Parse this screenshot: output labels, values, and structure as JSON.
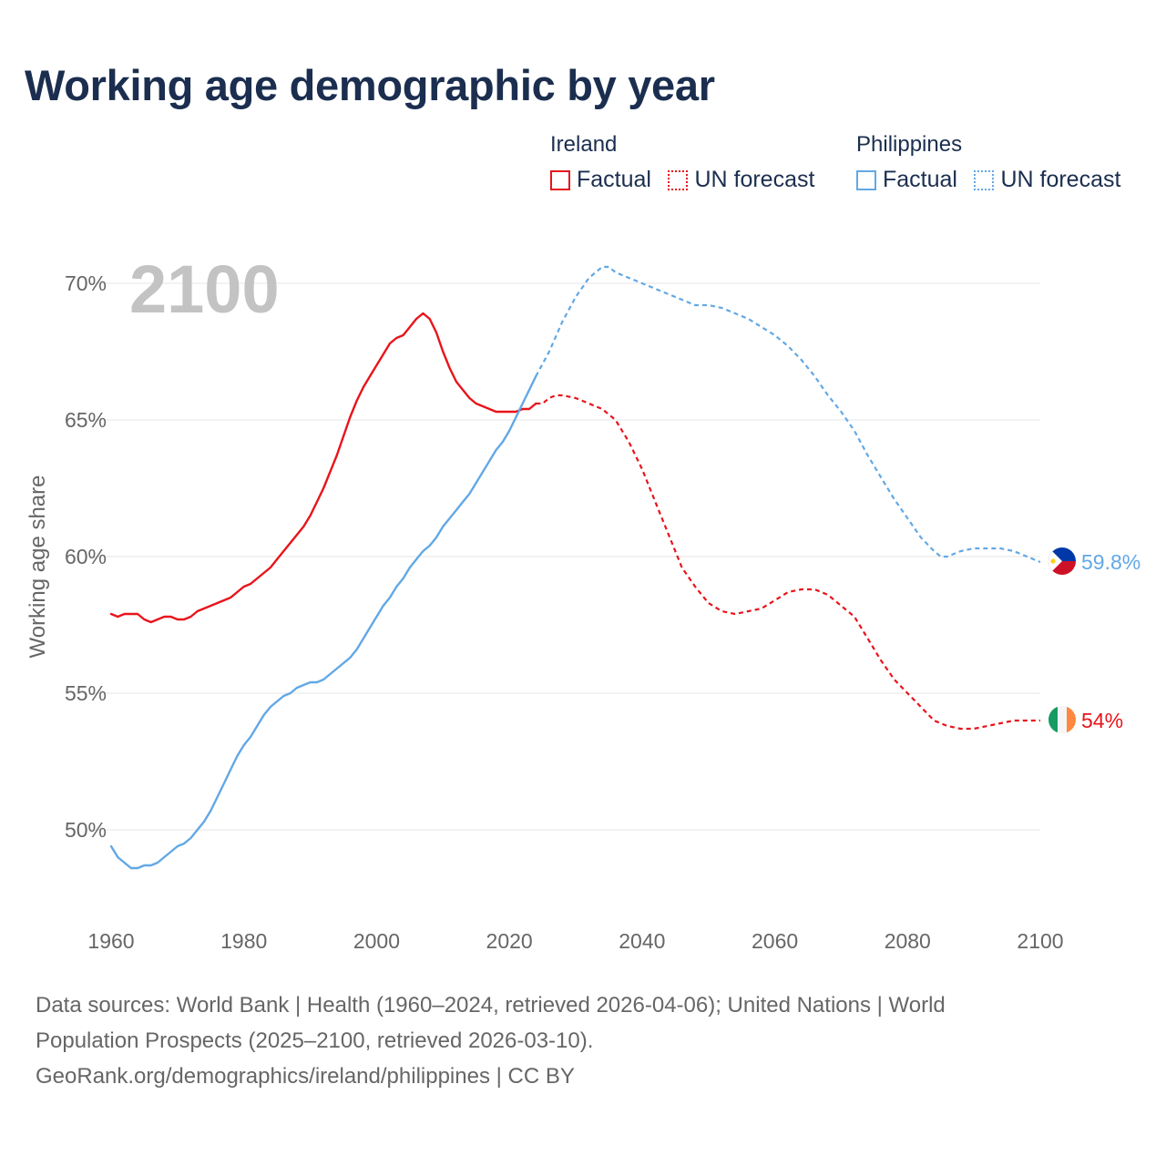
{
  "title": "Working age demographic by year",
  "year_label": "2100",
  "legend": {
    "groups": [
      {
        "name": "Ireland",
        "factual": "Factual",
        "forecast": "UN forecast",
        "color": "#e8141b"
      },
      {
        "name": "Philippines",
        "factual": "Factual",
        "forecast": "UN forecast",
        "color": "#62a8e5"
      }
    ]
  },
  "footer": {
    "line1": "Data sources: World Bank | Health (1960–2024, retrieved 2026-04-06); United Nations | World",
    "line2": "Population Prospects (2025–2100, retrieved 2026-03-10).",
    "line3": "GeoRank.org/demographics/ireland/philippines | CC BY"
  },
  "chart_data": {
    "type": "line",
    "title": "Working age demographic by year",
    "xlabel": "",
    "ylabel": "Working age share",
    "xlim": [
      1960,
      2100
    ],
    "ylim": [
      47,
      72
    ],
    "x_ticks": [
      1960,
      1980,
      2000,
      2020,
      2040,
      2060,
      2080,
      2100
    ],
    "y_ticks": [
      50,
      55,
      60,
      65,
      70
    ],
    "y_tick_labels": [
      "50%",
      "55%",
      "60%",
      "65%",
      "70%"
    ],
    "grid": true,
    "series": [
      {
        "name": "Ireland",
        "color": "#e8141b",
        "end_label": "54%",
        "factual": {
          "x": [
            1960,
            1961,
            1962,
            1963,
            1964,
            1965,
            1966,
            1967,
            1968,
            1969,
            1970,
            1971,
            1972,
            1973,
            1974,
            1975,
            1976,
            1977,
            1978,
            1979,
            1980,
            1981,
            1982,
            1983,
            1984,
            1985,
            1986,
            1987,
            1988,
            1989,
            1990,
            1991,
            1992,
            1993,
            1994,
            1995,
            1996,
            1997,
            1998,
            1999,
            2000,
            2001,
            2002,
            2003,
            2004,
            2005,
            2006,
            2007,
            2008,
            2009,
            2010,
            2011,
            2012,
            2013,
            2014,
            2015,
            2016,
            2017,
            2018,
            2019,
            2020,
            2021,
            2022,
            2023,
            2024
          ],
          "y": [
            57.9,
            57.8,
            57.9,
            57.9,
            57.9,
            57.7,
            57.6,
            57.7,
            57.8,
            57.8,
            57.7,
            57.7,
            57.8,
            58.0,
            58.1,
            58.2,
            58.3,
            58.4,
            58.5,
            58.7,
            58.9,
            59.0,
            59.2,
            59.4,
            59.6,
            59.9,
            60.2,
            60.5,
            60.8,
            61.1,
            61.5,
            62.0,
            62.5,
            63.1,
            63.7,
            64.4,
            65.1,
            65.7,
            66.2,
            66.6,
            67.0,
            67.4,
            67.8,
            68.0,
            68.1,
            68.4,
            68.7,
            68.9,
            68.7,
            68.2,
            67.5,
            66.9,
            66.4,
            66.1,
            65.8,
            65.6,
            65.5,
            65.4,
            65.3,
            65.3,
            65.3,
            65.3,
            65.4,
            65.4,
            65.6
          ]
        },
        "forecast": {
          "x": [
            2024,
            2025,
            2026,
            2027,
            2028,
            2030,
            2032,
            2034,
            2036,
            2038,
            2040,
            2042,
            2044,
            2046,
            2048,
            2050,
            2052,
            2054,
            2056,
            2058,
            2060,
            2062,
            2064,
            2066,
            2068,
            2070,
            2072,
            2074,
            2076,
            2078,
            2080,
            2082,
            2084,
            2086,
            2088,
            2090,
            2092,
            2094,
            2096,
            2098,
            2100
          ],
          "y": [
            65.6,
            65.6,
            65.8,
            65.9,
            65.9,
            65.8,
            65.6,
            65.4,
            65.0,
            64.2,
            63.2,
            62.0,
            60.8,
            59.6,
            58.9,
            58.3,
            58.0,
            57.9,
            58.0,
            58.1,
            58.4,
            58.7,
            58.8,
            58.8,
            58.6,
            58.2,
            57.8,
            57.0,
            56.2,
            55.5,
            55.0,
            54.5,
            54.0,
            53.8,
            53.7,
            53.7,
            53.8,
            53.9,
            54.0,
            54.0,
            54.0
          ]
        }
      },
      {
        "name": "Philippines",
        "color": "#62a8e5",
        "end_label": "59.8%",
        "factual": {
          "x": [
            1960,
            1961,
            1962,
            1963,
            1964,
            1965,
            1966,
            1967,
            1968,
            1969,
            1970,
            1971,
            1972,
            1973,
            1974,
            1975,
            1976,
            1977,
            1978,
            1979,
            1980,
            1981,
            1982,
            1983,
            1984,
            1985,
            1986,
            1987,
            1988,
            1989,
            1990,
            1991,
            1992,
            1993,
            1994,
            1995,
            1996,
            1997,
            1998,
            1999,
            2000,
            2001,
            2002,
            2003,
            2004,
            2005,
            2006,
            2007,
            2008,
            2009,
            2010,
            2011,
            2012,
            2013,
            2014,
            2015,
            2016,
            2017,
            2018,
            2019,
            2020,
            2021,
            2022,
            2023,
            2024
          ],
          "y": [
            49.4,
            49.0,
            48.8,
            48.6,
            48.6,
            48.7,
            48.7,
            48.8,
            49.0,
            49.2,
            49.4,
            49.5,
            49.7,
            50.0,
            50.3,
            50.7,
            51.2,
            51.7,
            52.2,
            52.7,
            53.1,
            53.4,
            53.8,
            54.2,
            54.5,
            54.7,
            54.9,
            55.0,
            55.2,
            55.3,
            55.4,
            55.4,
            55.5,
            55.7,
            55.9,
            56.1,
            56.3,
            56.6,
            57.0,
            57.4,
            57.8,
            58.2,
            58.5,
            58.9,
            59.2,
            59.6,
            59.9,
            60.2,
            60.4,
            60.7,
            61.1,
            61.4,
            61.7,
            62.0,
            62.3,
            62.7,
            63.1,
            63.5,
            63.9,
            64.2,
            64.6,
            65.1,
            65.6,
            66.1,
            66.6
          ]
        },
        "forecast": {
          "x": [
            2024,
            2026,
            2028,
            2030,
            2032,
            2034,
            2035,
            2036,
            2038,
            2040,
            2042,
            2044,
            2046,
            2048,
            2050,
            2052,
            2054,
            2056,
            2058,
            2060,
            2062,
            2064,
            2066,
            2068,
            2070,
            2072,
            2074,
            2076,
            2078,
            2080,
            2082,
            2084,
            2085,
            2086,
            2088,
            2090,
            2092,
            2094,
            2096,
            2098,
            2100
          ],
          "y": [
            66.6,
            67.5,
            68.6,
            69.5,
            70.2,
            70.6,
            70.6,
            70.4,
            70.2,
            70.0,
            69.8,
            69.6,
            69.4,
            69.2,
            69.2,
            69.1,
            68.9,
            68.7,
            68.4,
            68.1,
            67.7,
            67.2,
            66.6,
            65.9,
            65.3,
            64.6,
            63.7,
            62.9,
            62.1,
            61.4,
            60.7,
            60.2,
            60.0,
            60.0,
            60.2,
            60.3,
            60.3,
            60.3,
            60.2,
            60.0,
            59.8
          ]
        }
      }
    ]
  }
}
